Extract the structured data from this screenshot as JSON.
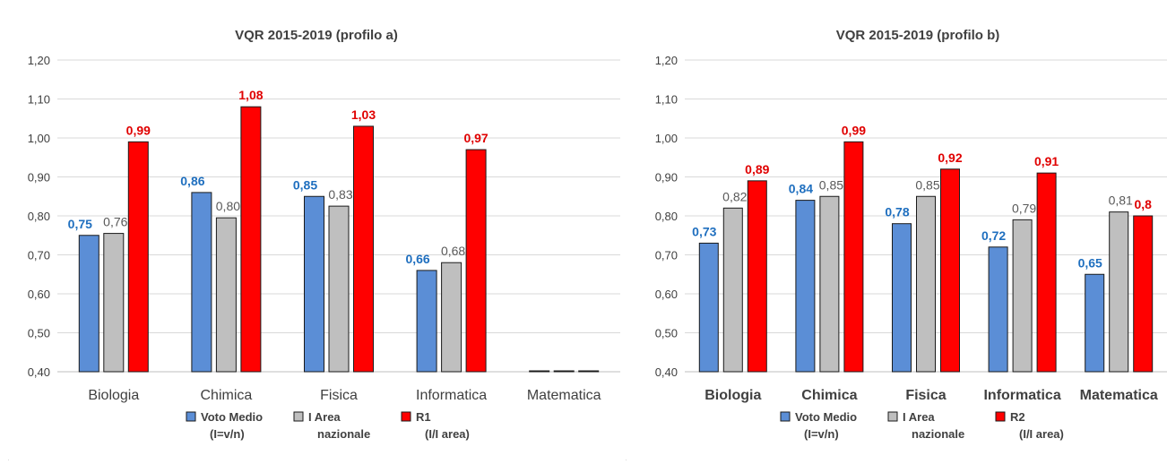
{
  "chart_data": [
    {
      "type": "bar",
      "title": "VQR 2015-2019 (profilo a)",
      "categories": [
        "Biologia",
        "Chimica",
        "Fisica",
        "Informatica",
        "Matematica"
      ],
      "ylim": [
        0.4,
        1.2
      ],
      "yticks": [
        "0,40",
        "0,50",
        "0,60",
        "0,70",
        "0,80",
        "0,90",
        "1,00",
        "1,10",
        "1,20"
      ],
      "grid": true,
      "legend_position": "bottom",
      "series": [
        {
          "name": "Voto Medio (I=v/n)",
          "legend_lines": [
            "Voto Medio",
            "(I=v/n)"
          ],
          "color": "#5B8ED6",
          "values": [
            0.75,
            0.86,
            0.85,
            0.66,
            0.4
          ],
          "labels": [
            "0,75",
            "0,86",
            "0,85",
            "0,66",
            ""
          ],
          "label_color": "#1F6FBF",
          "label_bold": true
        },
        {
          "name": "I Area nazionale",
          "legend_lines": [
            "I Area",
            "nazionale"
          ],
          "color": "#BFBFBF",
          "values": [
            0.755,
            0.795,
            0.825,
            0.68,
            0.4
          ],
          "labels": [
            "0,76",
            "0,80",
            "0,83",
            "0,68",
            ""
          ],
          "label_color": "#595959",
          "label_bold": false
        },
        {
          "name": "R1 (I/I area)",
          "legend_lines": [
            "R1",
            "(I/I area)"
          ],
          "color": "#FF0000",
          "values": [
            0.99,
            1.08,
            1.03,
            0.97,
            0.4
          ],
          "labels": [
            "0,99",
            "1,08",
            "1,03",
            "0,97",
            ""
          ],
          "label_color": "#E00000",
          "label_bold": true
        }
      ]
    },
    {
      "type": "bar",
      "title": "VQR 2015-2019 (profilo b)",
      "categories": [
        "Biologia",
        "Chimica",
        "Fisica",
        "Informatica",
        "Matematica"
      ],
      "ylim": [
        0.4,
        1.2
      ],
      "yticks": [
        "0,40",
        "0,50",
        "0,60",
        "0,70",
        "0,80",
        "0,90",
        "1,00",
        "1,10",
        "1,20"
      ],
      "grid": true,
      "legend_position": "bottom",
      "series": [
        {
          "name": "Voto Medio (I=v/n)",
          "legend_lines": [
            "Voto Medio",
            "(I=v/n)"
          ],
          "color": "#5B8ED6",
          "values": [
            0.73,
            0.84,
            0.78,
            0.72,
            0.65
          ],
          "labels": [
            "0,73",
            "0,84",
            "0,78",
            "0,72",
            "0,65"
          ],
          "label_color": "#1F6FBF",
          "label_bold": true
        },
        {
          "name": "I Area nazionale",
          "legend_lines": [
            "I Area",
            "nazionale"
          ],
          "color": "#BFBFBF",
          "values": [
            0.82,
            0.85,
            0.85,
            0.79,
            0.81
          ],
          "labels": [
            "0,82",
            "0,85",
            "0,85",
            "0,79",
            "0,81"
          ],
          "label_color": "#595959",
          "label_bold": false
        },
        {
          "name": "R2 (I/I area)",
          "legend_lines": [
            "R2",
            "(I/I area)"
          ],
          "color": "#FF0000",
          "values": [
            0.89,
            0.99,
            0.92,
            0.91,
            0.8
          ],
          "labels": [
            "0,89",
            "0,99",
            "0,92",
            "0,91",
            "0,8"
          ],
          "label_color": "#E00000",
          "label_bold": true
        }
      ]
    }
  ]
}
